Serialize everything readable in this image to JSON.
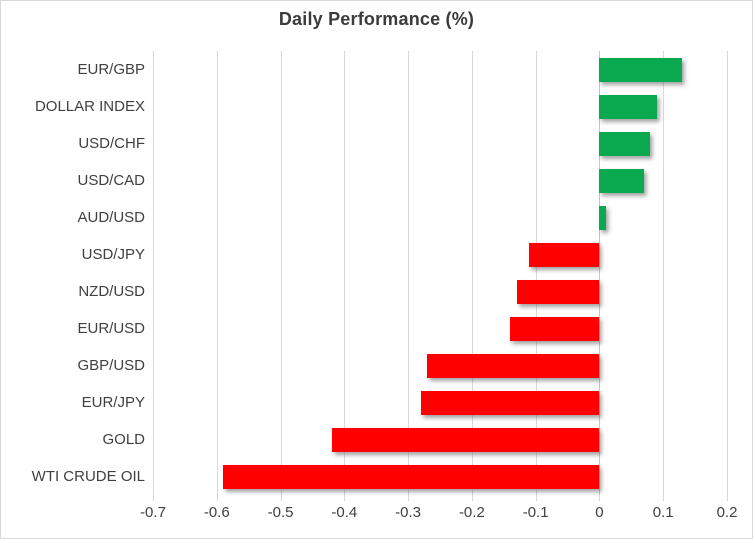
{
  "chart_data": {
    "type": "bar",
    "orientation": "horizontal",
    "title": "Daily Performance (%)",
    "categories": [
      "EUR/GBP",
      "DOLLAR INDEX",
      "USD/CHF",
      "USD/CAD",
      "AUD/USD",
      "USD/JPY",
      "NZD/USD",
      "EUR/USD",
      "GBP/USD",
      "EUR/JPY",
      "GOLD",
      "WTI CRUDE OIL"
    ],
    "values": [
      0.13,
      0.09,
      0.08,
      0.07,
      0.01,
      -0.11,
      -0.13,
      -0.14,
      -0.27,
      -0.28,
      -0.42,
      -0.59
    ],
    "xlabel": "",
    "ylabel": "",
    "xlim": [
      -0.7,
      0.2
    ],
    "xticks": [
      -0.7,
      -0.6,
      -0.5,
      -0.4,
      -0.3,
      -0.2,
      -0.1,
      0,
      0.1,
      0.2
    ],
    "xtick_labels": [
      "-0.7",
      "-0.6",
      "-0.5",
      "-0.4",
      "-0.3",
      "-0.2",
      "-0.1",
      "0",
      "0.1",
      "0.2"
    ],
    "grid": true,
    "legend": false,
    "colors": {
      "positive": "#0aa84f",
      "negative": "#ff0000",
      "gridline": "#d9d9d9",
      "zero_axis": "#c6c6c6",
      "text": "#404040",
      "title": "#3b3b3b",
      "border": "#d9d9d9",
      "background": "#ffffff"
    }
  }
}
